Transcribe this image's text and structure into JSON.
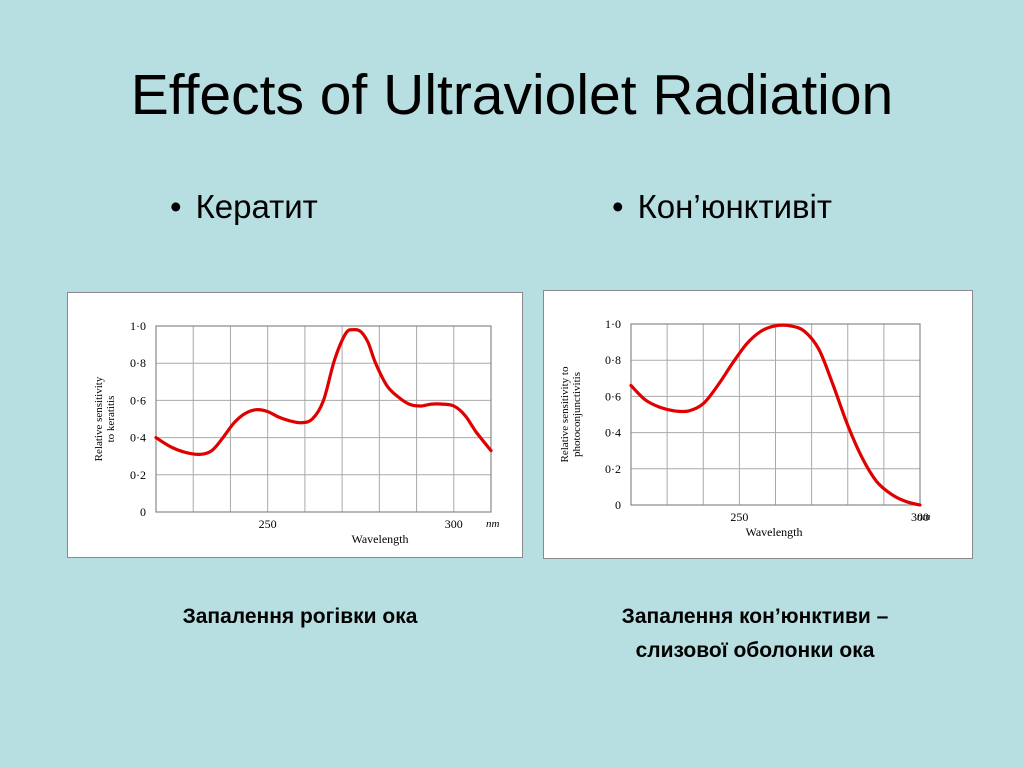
{
  "slide": {
    "title": "Effects of Ultraviolet Radiation"
  },
  "bullets": [
    {
      "marker": "•",
      "text": "Кератит"
    },
    {
      "marker": "•",
      "text": "Кон’юнктивіт"
    }
  ],
  "captions": [
    {
      "line1": "Запалення рогівки ока",
      "line2": ""
    },
    {
      "line1": "Запалення кон’юнктиви –",
      "line2": "слизової оболонки ока"
    }
  ],
  "colors": {
    "background": "#b7dfe2",
    "curve": "#e00000",
    "grid": "#aaaaaa"
  },
  "chart_data": [
    {
      "type": "line",
      "title": "",
      "xlabel": "Wavelength",
      "xunit": "nm",
      "ylabel": [
        "Relative sensitivity",
        "to keratitis"
      ],
      "xlim": [
        220,
        310
      ],
      "ylim": [
        0,
        1.0
      ],
      "xticks": [
        {
          "v": 250,
          "label": "250"
        },
        {
          "v": 300,
          "label": "300"
        }
      ],
      "yticks": [
        {
          "v": 0,
          "label": "0"
        },
        {
          "v": 0.2,
          "label": "0·2"
        },
        {
          "v": 0.4,
          "label": "0·4"
        },
        {
          "v": 0.6,
          "label": "0·6"
        },
        {
          "v": 0.8,
          "label": "0·8"
        },
        {
          "v": 1.0,
          "label": "1·0"
        }
      ],
      "grid": true,
      "series": [
        {
          "x": [
            220,
            224,
            228,
            232,
            235,
            238,
            241,
            244,
            247,
            250,
            253,
            256,
            259,
            262,
            265,
            268,
            271,
            273,
            275,
            277,
            279,
            282,
            285,
            288,
            291,
            294,
            297,
            300,
            303,
            306,
            310
          ],
          "y": [
            0.4,
            0.35,
            0.32,
            0.31,
            0.33,
            0.4,
            0.48,
            0.53,
            0.55,
            0.54,
            0.51,
            0.49,
            0.48,
            0.5,
            0.6,
            0.82,
            0.96,
            0.98,
            0.97,
            0.91,
            0.8,
            0.68,
            0.62,
            0.58,
            0.57,
            0.58,
            0.58,
            0.57,
            0.52,
            0.43,
            0.33
          ]
        }
      ]
    },
    {
      "type": "line",
      "title": "",
      "xlabel": "Wavelength",
      "xunit": "nm",
      "ylabel": [
        "Relative sensitivity to",
        "photoconjunctivitis"
      ],
      "xlim": [
        220,
        300
      ],
      "ylim": [
        0,
        1.0
      ],
      "xticks": [
        {
          "v": 250,
          "label": "250"
        },
        {
          "v": 300,
          "label": "300"
        }
      ],
      "yticks": [
        {
          "v": 0,
          "label": "0"
        },
        {
          "v": 0.2,
          "label": "0·2"
        },
        {
          "v": 0.4,
          "label": "0·4"
        },
        {
          "v": 0.6,
          "label": "0·6"
        },
        {
          "v": 0.8,
          "label": "0·8"
        },
        {
          "v": 1.0,
          "label": "1·0"
        }
      ],
      "grid": true,
      "series": [
        {
          "x": [
            220,
            224,
            228,
            232,
            236,
            240,
            244,
            248,
            252,
            256,
            260,
            264,
            268,
            272,
            276,
            280,
            284,
            288,
            292,
            296,
            300
          ],
          "y": [
            0.66,
            0.58,
            0.54,
            0.52,
            0.52,
            0.56,
            0.66,
            0.78,
            0.89,
            0.96,
            0.99,
            0.99,
            0.96,
            0.86,
            0.66,
            0.44,
            0.26,
            0.13,
            0.06,
            0.02,
            0.0
          ]
        }
      ]
    }
  ]
}
